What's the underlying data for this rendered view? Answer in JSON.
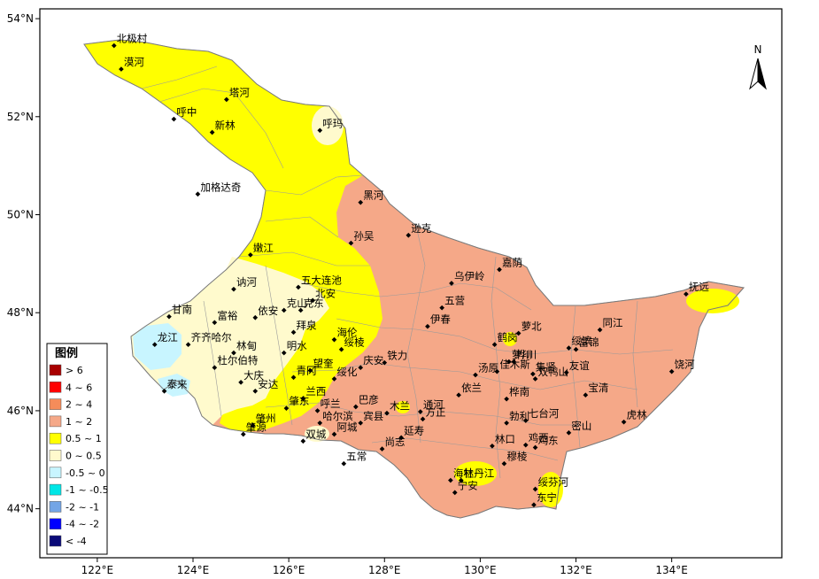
{
  "axes": {
    "lat_ticks": [
      {
        "value": 54,
        "label": "54°N"
      },
      {
        "value": 52,
        "label": "52°N"
      },
      {
        "value": 50,
        "label": "50°N"
      },
      {
        "value": 48,
        "label": "48°N"
      },
      {
        "value": 46,
        "label": "46°N"
      },
      {
        "value": 44,
        "label": "44°N"
      }
    ],
    "lon_ticks": [
      {
        "value": 122,
        "label": "122°E"
      },
      {
        "value": 124,
        "label": "124°E"
      },
      {
        "value": 126,
        "label": "126°E"
      },
      {
        "value": 128,
        "label": "128°E"
      },
      {
        "value": 130,
        "label": "130°E"
      },
      {
        "value": 132,
        "label": "132°E"
      },
      {
        "value": 134,
        "label": "134°E"
      }
    ],
    "lon_range": [
      120.8,
      136.3
    ],
    "lat_range": [
      43.0,
      54.2
    ]
  },
  "north_arrow": {
    "label": "N"
  },
  "legend": {
    "title": "图例",
    "items": [
      {
        "label": "> 6",
        "color": "#a80000"
      },
      {
        "label": "4 ~ 6",
        "color": "#ff0000"
      },
      {
        "label": "2 ~ 4",
        "color": "#f58c5a"
      },
      {
        "label": "1 ~ 2",
        "color": "#f5a888"
      },
      {
        "label": "0.5 ~ 1",
        "color": "#ffff00"
      },
      {
        "label": "0 ~ 0.5",
        "color": "#fffacd"
      },
      {
        "label": "-0.5 ~ 0",
        "color": "#c8f5ff"
      },
      {
        "label": "-1 ~ -0.5",
        "color": "#00e6e6"
      },
      {
        "label": "-2 ~ -1",
        "color": "#73a5e6"
      },
      {
        "label": "-4 ~ -2",
        "color": "#0000ff"
      },
      {
        "label": "< -4",
        "color": "#0a0a78"
      }
    ]
  },
  "stations": [
    {
      "name": "北极村",
      "lon": 122.35,
      "lat": 53.45
    },
    {
      "name": "漠河",
      "lon": 122.5,
      "lat": 52.97
    },
    {
      "name": "塔河",
      "lon": 124.7,
      "lat": 52.35
    },
    {
      "name": "呼中",
      "lon": 123.6,
      "lat": 51.95
    },
    {
      "name": "新林",
      "lon": 124.4,
      "lat": 51.68
    },
    {
      "name": "呼玛",
      "lon": 126.65,
      "lat": 51.72
    },
    {
      "name": "加格达奇",
      "lon": 124.1,
      "lat": 50.42
    },
    {
      "name": "黑河",
      "lon": 127.5,
      "lat": 50.25
    },
    {
      "name": "逊克",
      "lon": 128.5,
      "lat": 49.58
    },
    {
      "name": "孙吴",
      "lon": 127.3,
      "lat": 49.42
    },
    {
      "name": "嫩江",
      "lon": 125.2,
      "lat": 49.18
    },
    {
      "name": "嘉荫",
      "lon": 130.4,
      "lat": 48.88
    },
    {
      "name": "乌伊岭",
      "lon": 129.4,
      "lat": 48.6
    },
    {
      "name": "抚远",
      "lon": 134.3,
      "lat": 48.38
    },
    {
      "name": "讷河",
      "lon": 124.85,
      "lat": 48.48
    },
    {
      "name": "五大连池",
      "lon": 126.2,
      "lat": 48.52
    },
    {
      "name": "北安",
      "lon": 126.5,
      "lat": 48.25
    },
    {
      "name": "克山",
      "lon": 125.9,
      "lat": 48.05
    },
    {
      "name": "克东",
      "lon": 126.25,
      "lat": 48.05
    },
    {
      "name": "五营",
      "lon": 129.2,
      "lat": 48.1
    },
    {
      "name": "甘南",
      "lon": 123.5,
      "lat": 47.92
    },
    {
      "name": "富裕",
      "lon": 124.45,
      "lat": 47.8
    },
    {
      "name": "依安",
      "lon": 125.3,
      "lat": 47.9
    },
    {
      "name": "伊春",
      "lon": 128.9,
      "lat": 47.72
    },
    {
      "name": "拜泉",
      "lon": 126.1,
      "lat": 47.6
    },
    {
      "name": "萝北",
      "lon": 130.8,
      "lat": 47.58
    },
    {
      "name": "同江",
      "lon": 132.5,
      "lat": 47.65
    },
    {
      "name": "龙江",
      "lon": 123.2,
      "lat": 47.35
    },
    {
      "name": "齐齐哈尔",
      "lon": 123.9,
      "lat": 47.35
    },
    {
      "name": "海伦",
      "lon": 126.95,
      "lat": 47.45
    },
    {
      "name": "鹤岗",
      "lon": 130.3,
      "lat": 47.35
    },
    {
      "name": "绥滨",
      "lon": 131.85,
      "lat": 47.28
    },
    {
      "name": "林甸",
      "lon": 124.85,
      "lat": 47.18
    },
    {
      "name": "明水",
      "lon": 125.9,
      "lat": 47.18
    },
    {
      "name": "绥棱",
      "lon": 127.1,
      "lat": 47.25
    },
    {
      "name": "萝川",
      "lon": 130.6,
      "lat": 47.0
    },
    {
      "name": "富锦",
      "lon": 132.0,
      "lat": 47.25
    },
    {
      "name": "铁力",
      "lon": 128.0,
      "lat": 46.98
    },
    {
      "name": "杜尔伯特",
      "lon": 124.45,
      "lat": 46.88
    },
    {
      "name": "望奎",
      "lon": 126.45,
      "lat": 46.82
    },
    {
      "name": "庆安",
      "lon": 127.5,
      "lat": 46.88
    },
    {
      "name": "汤原",
      "lon": 129.9,
      "lat": 46.73
    },
    {
      "name": "佳木斯",
      "lon": 130.35,
      "lat": 46.8
    },
    {
      "name": "桦川",
      "lon": 130.7,
      "lat": 47.0
    },
    {
      "name": "双鸭山",
      "lon": 131.15,
      "lat": 46.65
    },
    {
      "name": "集贤",
      "lon": 131.1,
      "lat": 46.75
    },
    {
      "name": "友谊",
      "lon": 131.8,
      "lat": 46.78
    },
    {
      "name": "饶河",
      "lon": 134.0,
      "lat": 46.8
    },
    {
      "name": "青冈",
      "lon": 126.1,
      "lat": 46.68
    },
    {
      "name": "绥化",
      "lon": 126.95,
      "lat": 46.65
    },
    {
      "name": "大庆",
      "lon": 125.0,
      "lat": 46.58
    },
    {
      "name": "泰来",
      "lon": 123.4,
      "lat": 46.4
    },
    {
      "name": "安达",
      "lon": 125.3,
      "lat": 46.4
    },
    {
      "name": "兰西",
      "lon": 126.3,
      "lat": 46.25
    },
    {
      "name": "依兰",
      "lon": 129.55,
      "lat": 46.32
    },
    {
      "name": "桦南",
      "lon": 130.55,
      "lat": 46.24
    },
    {
      "name": "宝清",
      "lon": 132.2,
      "lat": 46.32
    },
    {
      "name": "肇东",
      "lon": 125.95,
      "lat": 46.05
    },
    {
      "name": "呼兰",
      "lon": 126.6,
      "lat": 46.0
    },
    {
      "name": "巴彦",
      "lon": 127.4,
      "lat": 46.08
    },
    {
      "name": "木兰",
      "lon": 128.05,
      "lat": 45.95
    },
    {
      "name": "通河",
      "lon": 128.75,
      "lat": 45.98
    },
    {
      "name": "哈尔滨",
      "lon": 126.65,
      "lat": 45.75
    },
    {
      "name": "宾县",
      "lon": 127.5,
      "lat": 45.75
    },
    {
      "name": "方正",
      "lon": 128.8,
      "lat": 45.83
    },
    {
      "name": "勃利",
      "lon": 130.55,
      "lat": 45.75
    },
    {
      "name": "七台河",
      "lon": 130.95,
      "lat": 45.8
    },
    {
      "name": "虎林",
      "lon": 133.0,
      "lat": 45.77
    },
    {
      "name": "肇州",
      "lon": 125.25,
      "lat": 45.7
    },
    {
      "name": "阿城",
      "lon": 126.95,
      "lat": 45.52
    },
    {
      "name": "延寿",
      "lon": 128.35,
      "lat": 45.45
    },
    {
      "name": "密山",
      "lon": 131.85,
      "lat": 45.55
    },
    {
      "name": "肇源",
      "lon": 125.05,
      "lat": 45.52
    },
    {
      "name": "双城",
      "lon": 126.3,
      "lat": 45.38
    },
    {
      "name": "鸡西",
      "lon": 130.95,
      "lat": 45.3
    },
    {
      "name": "尚志",
      "lon": 127.95,
      "lat": 45.22
    },
    {
      "name": "林口",
      "lon": 130.25,
      "lat": 45.28
    },
    {
      "name": "鸡东",
      "lon": 131.15,
      "lat": 45.25
    },
    {
      "name": "五常",
      "lon": 127.15,
      "lat": 44.92
    },
    {
      "name": "穆棱",
      "lon": 130.5,
      "lat": 44.92
    },
    {
      "name": "海林",
      "lon": 129.38,
      "lat": 44.58
    },
    {
      "name": "牡丹江",
      "lon": 129.6,
      "lat": 44.58
    },
    {
      "name": "宁安",
      "lon": 129.47,
      "lat": 44.33
    },
    {
      "name": "绥芬河",
      "lon": 131.15,
      "lat": 44.4
    },
    {
      "name": "东宁",
      "lon": 131.12,
      "lat": 44.08
    }
  ]
}
